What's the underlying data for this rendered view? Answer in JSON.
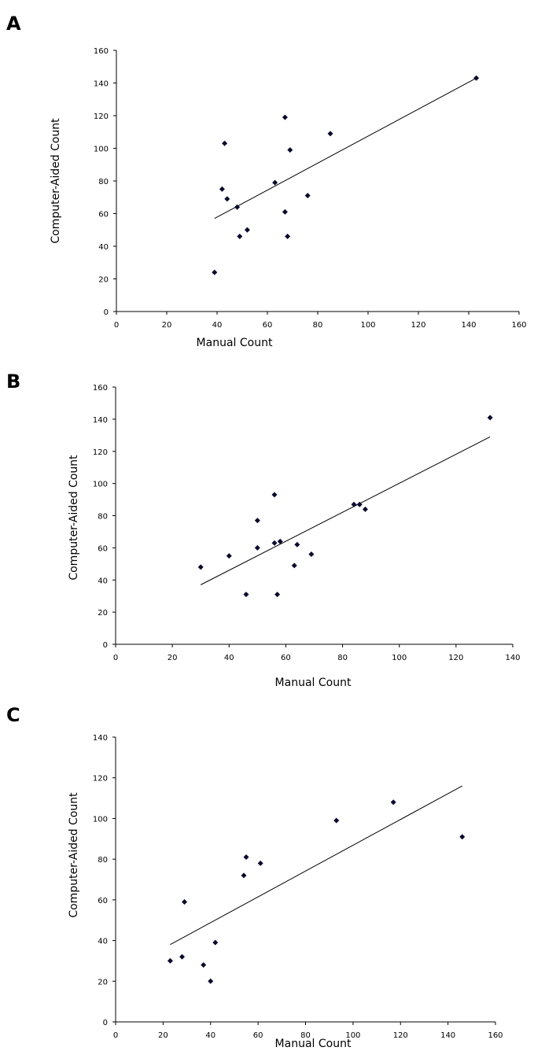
{
  "chart_data": [
    {
      "panel_label": "A",
      "type": "scatter",
      "xlabel": "Manual Count",
      "ylabel": "Computer-Aided Count",
      "xlim": [
        0,
        160
      ],
      "ylim": [
        0,
        160
      ],
      "xticks": [
        0,
        20,
        40,
        60,
        80,
        100,
        120,
        140,
        160
      ],
      "yticks": [
        0,
        20,
        40,
        60,
        80,
        100,
        120,
        140,
        160
      ],
      "grid": false,
      "points": [
        {
          "x": 39,
          "y": 24
        },
        {
          "x": 42,
          "y": 75
        },
        {
          "x": 43,
          "y": 103
        },
        {
          "x": 44,
          "y": 69
        },
        {
          "x": 48,
          "y": 64
        },
        {
          "x": 49,
          "y": 46
        },
        {
          "x": 52,
          "y": 50
        },
        {
          "x": 63,
          "y": 79
        },
        {
          "x": 67,
          "y": 119
        },
        {
          "x": 67,
          "y": 61
        },
        {
          "x": 68,
          "y": 46
        },
        {
          "x": 69,
          "y": 99
        },
        {
          "x": 76,
          "y": 71
        },
        {
          "x": 85,
          "y": 109
        },
        {
          "x": 143,
          "y": 143
        }
      ],
      "trendline": {
        "x": [
          39,
          143
        ],
        "y": [
          57,
          143
        ]
      }
    },
    {
      "panel_label": "B",
      "type": "scatter",
      "xlabel": "Manual Count",
      "ylabel": "Computer-Aided Count",
      "xlim": [
        0,
        140
      ],
      "ylim": [
        0,
        160
      ],
      "xticks": [
        0,
        20,
        40,
        60,
        80,
        100,
        120,
        140
      ],
      "yticks": [
        0,
        20,
        40,
        60,
        80,
        100,
        120,
        140,
        160
      ],
      "grid": false,
      "points": [
        {
          "x": 30,
          "y": 48
        },
        {
          "x": 40,
          "y": 55
        },
        {
          "x": 46,
          "y": 31
        },
        {
          "x": 50,
          "y": 77
        },
        {
          "x": 50,
          "y": 60
        },
        {
          "x": 56,
          "y": 93
        },
        {
          "x": 56,
          "y": 63
        },
        {
          "x": 57,
          "y": 31
        },
        {
          "x": 58,
          "y": 64
        },
        {
          "x": 63,
          "y": 49
        },
        {
          "x": 64,
          "y": 62
        },
        {
          "x": 69,
          "y": 56
        },
        {
          "x": 84,
          "y": 87
        },
        {
          "x": 86,
          "y": 87
        },
        {
          "x": 88,
          "y": 84
        },
        {
          "x": 132,
          "y": 141
        }
      ],
      "trendline": {
        "x": [
          30,
          132
        ],
        "y": [
          37,
          129
        ]
      }
    },
    {
      "panel_label": "C",
      "type": "scatter",
      "xlabel": "Manual Count",
      "ylabel": "Computer-Aided Count",
      "xlim": [
        0,
        160
      ],
      "ylim": [
        0,
        140
      ],
      "xticks": [
        0,
        20,
        40,
        60,
        80,
        100,
        120,
        140,
        160
      ],
      "yticks": [
        0,
        20,
        40,
        60,
        80,
        100,
        120,
        140
      ],
      "grid": false,
      "points": [
        {
          "x": 23,
          "y": 30
        },
        {
          "x": 28,
          "y": 32
        },
        {
          "x": 29,
          "y": 59
        },
        {
          "x": 37,
          "y": 28
        },
        {
          "x": 40,
          "y": 20
        },
        {
          "x": 42,
          "y": 39
        },
        {
          "x": 54,
          "y": 72
        },
        {
          "x": 55,
          "y": 81
        },
        {
          "x": 61,
          "y": 78
        },
        {
          "x": 93,
          "y": 99
        },
        {
          "x": 117,
          "y": 108
        },
        {
          "x": 146,
          "y": 91
        }
      ],
      "trendline": {
        "x": [
          23,
          146
        ],
        "y": [
          38,
          116
        ]
      }
    }
  ]
}
